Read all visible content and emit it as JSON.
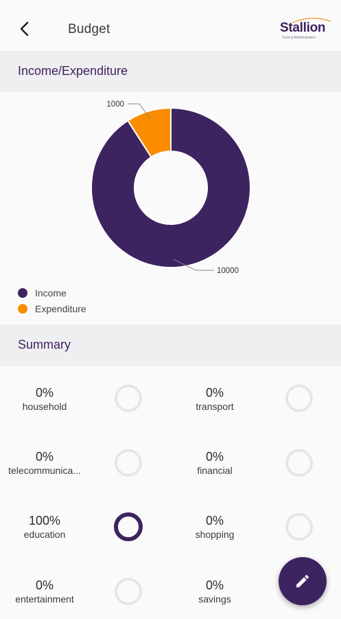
{
  "appbar": {
    "title": "Budget",
    "back_icon": "arrow-back-icon",
    "logo": {
      "name": "Stallion",
      "tagline": "Trust & Administration"
    }
  },
  "income_section": {
    "title": "Income/Expenditure"
  },
  "chart_data": {
    "type": "pie",
    "variant": "donut",
    "categories": [
      "Income",
      "Expenditure"
    ],
    "values": [
      10000,
      1000
    ],
    "data_labels": [
      "10000",
      "1000"
    ],
    "colors": [
      "#3d2360",
      "#fb8c00"
    ],
    "legend": "bottom-left"
  },
  "summary_section": {
    "title": "Summary"
  },
  "summary": [
    {
      "pct": "0%",
      "category": "household",
      "fraction": 0
    },
    {
      "pct": "0%",
      "category": "transport",
      "fraction": 0
    },
    {
      "pct": "0%",
      "category": "telecommunica...",
      "fraction": 0
    },
    {
      "pct": "0%",
      "category": "financial",
      "fraction": 0
    },
    {
      "pct": "100%",
      "category": "education",
      "fraction": 1
    },
    {
      "pct": "0%",
      "category": "shopping",
      "fraction": 0
    },
    {
      "pct": "0%",
      "category": "entertainment",
      "fraction": 0
    },
    {
      "pct": "0%",
      "category": "savings",
      "fraction": 0
    }
  ],
  "colors": {
    "brand": "#3d2360",
    "accent": "#fb8c00",
    "ring_track": "#e6e6e6",
    "section_bg": "#efeef1"
  },
  "fab": {
    "icon": "edit-pencil-icon"
  }
}
